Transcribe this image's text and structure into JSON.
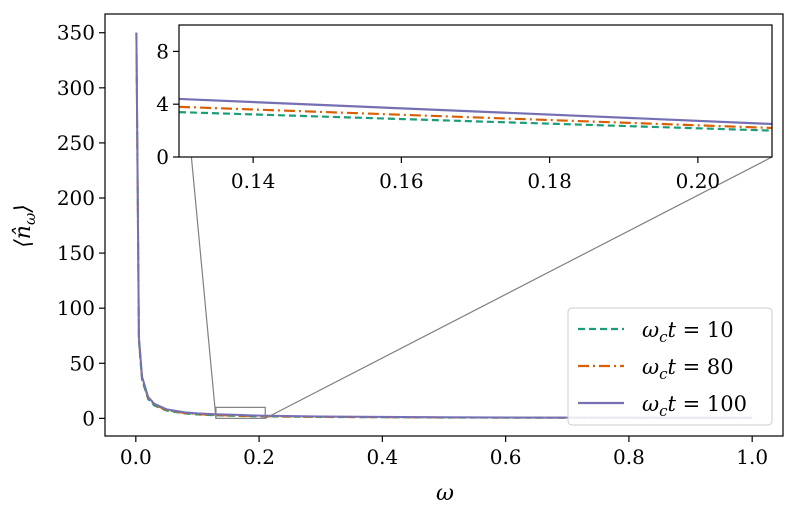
{
  "chart_data": {
    "type": "line",
    "xlabel": "ω",
    "ylabel": "⟨n̂_ω⟩",
    "xlim": [
      -0.05,
      1.05
    ],
    "ylim": [
      -16,
      367
    ],
    "xticks": [
      0.0,
      0.2,
      0.4,
      0.6,
      0.8,
      1.0
    ],
    "xtick_labels": [
      "0.0",
      "0.2",
      "0.4",
      "0.6",
      "0.8",
      "1.0"
    ],
    "yticks": [
      0,
      50,
      100,
      150,
      200,
      250,
      300,
      350
    ],
    "ytick_labels": [
      "0",
      "50",
      "100",
      "150",
      "200",
      "250",
      "300",
      "350"
    ],
    "legend_position": "lower-right",
    "grid": false,
    "series": [
      {
        "name": "ω_c t = 10",
        "label_base": "ω",
        "label_sub": "c",
        "label_var": "t",
        "label_eq": " = 10",
        "color": "#1b9e77",
        "style": "dashed",
        "x": [
          0.001,
          0.005,
          0.01,
          0.02,
          0.03,
          0.05,
          0.08,
          0.1,
          0.13,
          0.16,
          0.2,
          0.3,
          0.5,
          0.7,
          1.0
        ],
        "y": [
          350,
          70,
          35,
          17.5,
          11.7,
          7,
          4.4,
          3.5,
          2.7,
          2.2,
          1.75,
          1.2,
          0.7,
          0.5,
          0.35
        ]
      },
      {
        "name": "ω_c t = 80",
        "label_base": "ω",
        "label_sub": "c",
        "label_var": "t",
        "label_eq": " = 80",
        "color": "#d95f02",
        "style": "dashdot",
        "x": [
          0.001,
          0.005,
          0.01,
          0.02,
          0.03,
          0.05,
          0.08,
          0.1,
          0.13,
          0.16,
          0.2,
          0.3,
          0.5,
          0.7,
          1.0
        ],
        "y": [
          350,
          72,
          37,
          18.5,
          12.4,
          7.5,
          4.8,
          3.9,
          3.0,
          2.5,
          2.0,
          1.35,
          0.8,
          0.57,
          0.4
        ]
      },
      {
        "name": "ω_c t = 100",
        "label_base": "ω",
        "label_sub": "c",
        "label_var": "t",
        "label_eq": " = 100",
        "color": "#7570b3",
        "style": "solid",
        "x": [
          0.001,
          0.005,
          0.01,
          0.02,
          0.03,
          0.05,
          0.08,
          0.1,
          0.13,
          0.16,
          0.2,
          0.3,
          0.5,
          0.7,
          1.0
        ],
        "y": [
          350,
          74,
          38,
          19.5,
          13.2,
          8.2,
          5.4,
          4.5,
          3.8,
          3.2,
          2.5,
          1.7,
          1.0,
          0.7,
          0.5
        ]
      }
    ],
    "inset": {
      "xlim": [
        0.13,
        0.21
      ],
      "ylim": [
        0,
        10
      ],
      "xticks": [
        0.14,
        0.16,
        0.18,
        0.2
      ],
      "xtick_labels": [
        "0.14",
        "0.16",
        "0.18",
        "0.20"
      ],
      "yticks": [
        0,
        4,
        8
      ],
      "ytick_labels": [
        "0",
        "4",
        "8"
      ],
      "series_y": [
        [
          3.4,
          2.0
        ],
        [
          3.8,
          2.2
        ],
        [
          4.4,
          2.5
        ]
      ]
    }
  }
}
